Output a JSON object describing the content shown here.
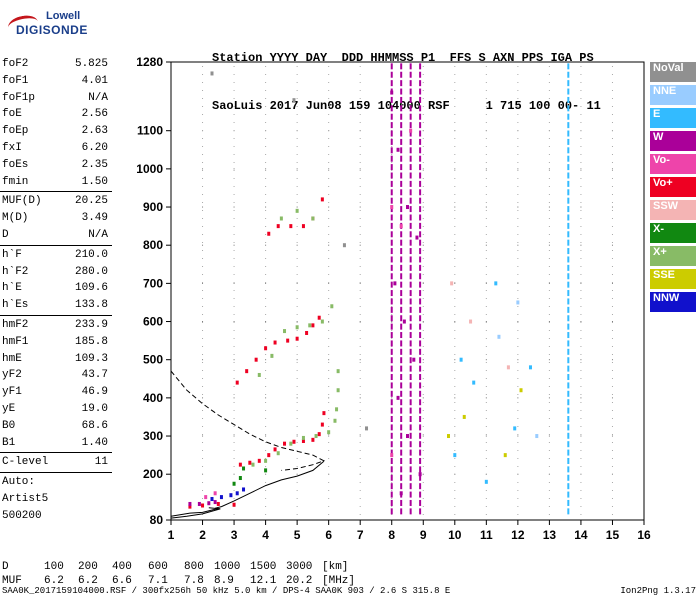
{
  "logo": {
    "line1": "Lowell",
    "line2": "DIGISONDE"
  },
  "header": {
    "line1": "Station YYYY DAY  DDD HHMMSS P1  FFS S AXN PPS IGA PS",
    "line2": "SaoLuis 2017 Jun08 159 104000 RSF     1 715 100 00- 11"
  },
  "params_group1": [
    {
      "label": "foF2",
      "value": "5.825"
    },
    {
      "label": "foF1",
      "value": "4.01"
    },
    {
      "label": "foF1p",
      "value": "N/A"
    },
    {
      "label": "foE",
      "value": "2.56"
    },
    {
      "label": "foEp",
      "value": "2.63"
    },
    {
      "label": "fxI",
      "value": "6.20"
    },
    {
      "label": "foEs",
      "value": "2.35"
    },
    {
      "label": "fmin",
      "value": "1.50"
    }
  ],
  "params_group2": [
    {
      "label": "MUF(D)",
      "value": "20.25"
    },
    {
      "label": "M(D)",
      "value": "3.49"
    },
    {
      "label": "D",
      "value": "N/A"
    }
  ],
  "params_group3": [
    {
      "label": "h`F",
      "value": "210.0"
    },
    {
      "label": "h`F2",
      "value": "280.0"
    },
    {
      "label": "h`E",
      "value": "109.6"
    },
    {
      "label": "h`Es",
      "value": "133.8"
    }
  ],
  "params_group4": [
    {
      "label": "hmF2",
      "value": "233.9"
    },
    {
      "label": "hmF1",
      "value": "185.8"
    },
    {
      "label": "hmE",
      "value": "109.3"
    },
    {
      "label": "yF2",
      "value": "43.7"
    },
    {
      "label": "yF1",
      "value": "46.9"
    },
    {
      "label": "yE",
      "value": "19.0"
    },
    {
      "label": "B0",
      "value": "68.6"
    },
    {
      "label": "B1",
      "value": "1.40"
    }
  ],
  "params_group5": [
    {
      "label": "C-level",
      "value": "11"
    }
  ],
  "autoscale": {
    "line1": "Auto:",
    "line2": "Artist5",
    "line3": "500200"
  },
  "legend": [
    {
      "label": "NoVal",
      "color": "#909090"
    },
    {
      "label": "NNE",
      "color": "#99ccff"
    },
    {
      "label": "E",
      "color": "#33bbff"
    },
    {
      "label": "W",
      "color": "#aa0099"
    },
    {
      "label": "Vo-",
      "color": "#ee44aa"
    },
    {
      "label": "Vo+",
      "color": "#ee0022"
    },
    {
      "label": "SSW",
      "color": "#f4b4b4"
    },
    {
      "label": "X-",
      "color": "#118811"
    },
    {
      "label": "X+",
      "color": "#88bb66"
    },
    {
      "label": "SSE",
      "color": "#cccc00"
    },
    {
      "label": "NNW",
      "color": "#1111cc"
    }
  ],
  "muf_table": {
    "d_label": "D",
    "d_values": [
      "100",
      "200",
      "400",
      "600",
      "800",
      "1000",
      "1500",
      "3000"
    ],
    "d_unit": "[km]",
    "muf_label": "MUF",
    "muf_values": [
      "6.2",
      "6.2",
      "6.6",
      "7.1",
      "7.8",
      "8.9",
      "12.1",
      "20.2"
    ],
    "muf_unit": "[MHz]"
  },
  "footer": "SAA0K_2017159104000.RSF / 300fx256h 50 kHz 5.0 km / DPS-4 SAA0K 903 / 2.6 S 315.8 E",
  "version": "Ion2Png 1.3.17",
  "chart_data": {
    "type": "scatter",
    "x_ticks": [
      1,
      2,
      3,
      4,
      5,
      6,
      7,
      8,
      9,
      10,
      11,
      12,
      13,
      14,
      15,
      16
    ],
    "y_ticks": [
      80,
      200,
      300,
      400,
      500,
      600,
      700,
      800,
      900,
      1000,
      1100,
      1280
    ],
    "xlim": [
      1,
      16
    ],
    "ylim": [
      80,
      1280
    ],
    "grid": true,
    "legend_placement": "right",
    "series": [
      {
        "name": "Vo+",
        "color": "#ee0022",
        "points": [
          [
            3.2,
            225
          ],
          [
            3.5,
            230
          ],
          [
            3.8,
            235
          ],
          [
            4.1,
            250
          ],
          [
            4.3,
            265
          ],
          [
            4.6,
            280
          ],
          [
            4.9,
            285
          ],
          [
            5.2,
            287
          ],
          [
            5.5,
            290
          ],
          [
            5.7,
            305
          ],
          [
            5.8,
            330
          ],
          [
            5.85,
            360
          ],
          [
            3.0,
            120
          ],
          [
            2.5,
            122
          ],
          [
            2.0,
            118
          ],
          [
            1.6,
            115
          ],
          [
            3.1,
            440
          ],
          [
            3.4,
            470
          ],
          [
            3.7,
            500
          ],
          [
            4.0,
            530
          ],
          [
            4.3,
            545
          ],
          [
            4.7,
            550
          ],
          [
            5.0,
            555
          ],
          [
            5.3,
            570
          ],
          [
            5.5,
            590
          ],
          [
            5.7,
            610
          ],
          [
            4.1,
            830
          ],
          [
            4.4,
            850
          ],
          [
            4.8,
            850
          ],
          [
            5.2,
            850
          ],
          [
            5.5,
            870
          ],
          [
            5.8,
            920
          ]
        ]
      },
      {
        "name": "X+",
        "color": "#88bb66",
        "points": [
          [
            3.6,
            225
          ],
          [
            4.0,
            235
          ],
          [
            4.4,
            255
          ],
          [
            4.8,
            280
          ],
          [
            5.2,
            295
          ],
          [
            5.6,
            300
          ],
          [
            6.0,
            310
          ],
          [
            6.2,
            340
          ],
          [
            6.25,
            370
          ],
          [
            6.3,
            420
          ],
          [
            6.3,
            470
          ],
          [
            3.8,
            460
          ],
          [
            4.2,
            510
          ],
          [
            4.6,
            575
          ],
          [
            5.0,
            585
          ],
          [
            5.4,
            590
          ],
          [
            5.8,
            600
          ],
          [
            6.1,
            640
          ],
          [
            4.5,
            870
          ],
          [
            5.0,
            890
          ],
          [
            5.5,
            870
          ]
        ]
      },
      {
        "name": "NNW",
        "color": "#1111cc",
        "points": [
          [
            2.6,
            140
          ],
          [
            2.9,
            145
          ],
          [
            3.1,
            150
          ],
          [
            3.3,
            160
          ],
          [
            2.3,
            135
          ]
        ]
      },
      {
        "name": "X-",
        "color": "#118811",
        "points": [
          [
            3.0,
            175
          ],
          [
            3.2,
            190
          ],
          [
            3.3,
            215
          ],
          [
            4.0,
            210
          ]
        ]
      },
      {
        "name": "W",
        "color": "#aa0099",
        "points": [
          [
            1.6,
            122
          ],
          [
            1.9,
            122
          ],
          [
            2.2,
            124
          ],
          [
            2.4,
            127
          ],
          [
            8.0,
            1200
          ],
          [
            8.2,
            1050
          ],
          [
            8.5,
            900
          ],
          [
            8.8,
            820
          ],
          [
            8.1,
            700
          ],
          [
            8.4,
            600
          ],
          [
            8.7,
            500
          ],
          [
            8.2,
            400
          ],
          [
            8.5,
            300
          ],
          [
            8.9,
            200
          ],
          [
            8.3,
            150
          ]
        ]
      },
      {
        "name": "E",
        "color": "#33bbff",
        "points": [
          [
            10.2,
            500
          ],
          [
            10.6,
            440
          ],
          [
            11.3,
            700
          ],
          [
            11.9,
            320
          ],
          [
            12.4,
            480
          ],
          [
            10.0,
            250
          ],
          [
            11.0,
            180
          ]
        ]
      },
      {
        "name": "SSE",
        "color": "#cccc00",
        "points": [
          [
            9.8,
            300
          ],
          [
            10.3,
            350
          ],
          [
            11.6,
            250
          ],
          [
            12.1,
            420
          ]
        ]
      },
      {
        "name": "Vo-",
        "color": "#ee44aa",
        "points": [
          [
            2.1,
            140
          ],
          [
            2.4,
            150
          ],
          [
            8.0,
            900
          ],
          [
            8.6,
            1100
          ],
          [
            8.3,
            850
          ],
          [
            8.0,
            250
          ]
        ]
      },
      {
        "name": "NNE",
        "color": "#99ccff",
        "points": [
          [
            12.0,
            650
          ],
          [
            12.6,
            300
          ],
          [
            11.4,
            560
          ]
        ]
      },
      {
        "name": "SSW",
        "color": "#f4b4b4",
        "points": [
          [
            10.5,
            600
          ],
          [
            11.7,
            480
          ],
          [
            9.9,
            700
          ]
        ]
      },
      {
        "name": "NoVal",
        "color": "#909090",
        "points": [
          [
            2.3,
            1250
          ],
          [
            4.9,
            1180
          ],
          [
            7.2,
            320
          ],
          [
            6.5,
            800
          ]
        ]
      }
    ],
    "vertical_streaks": [
      {
        "x": 8.0,
        "color": "#aa0099"
      },
      {
        "x": 8.3,
        "color": "#aa0099"
      },
      {
        "x": 8.6,
        "color": "#aa0099"
      },
      {
        "x": 8.9,
        "color": "#aa0099"
      },
      {
        "x": 13.6,
        "color": "#33bbff"
      }
    ],
    "profile_curves": [
      {
        "style": "dashed",
        "points": [
          [
            1.0,
            470
          ],
          [
            1.5,
            420
          ],
          [
            2.0,
            385
          ],
          [
            2.5,
            355
          ],
          [
            3.0,
            330
          ],
          [
            3.5,
            305
          ],
          [
            4.0,
            285
          ],
          [
            4.5,
            270
          ],
          [
            5.0,
            260
          ],
          [
            5.5,
            250
          ],
          [
            5.85,
            235
          ],
          [
            5.5,
            225
          ],
          [
            5.0,
            215
          ],
          [
            4.5,
            210
          ]
        ]
      },
      {
        "style": "solid",
        "points": [
          [
            1.0,
            90
          ],
          [
            1.6,
            98
          ],
          [
            2.0,
            100
          ],
          [
            2.4,
            108
          ],
          [
            2.56,
            109
          ],
          [
            2.4,
            111
          ],
          [
            2.6,
            115
          ],
          [
            3.0,
            130
          ],
          [
            3.5,
            150
          ],
          [
            4.0,
            170
          ],
          [
            4.5,
            185
          ],
          [
            5.0,
            195
          ],
          [
            5.5,
            210
          ],
          [
            5.85,
            234
          ]
        ]
      },
      {
        "style": "solid",
        "points": [
          [
            1.0,
            85
          ],
          [
            1.5,
            90
          ],
          [
            2.0,
            96
          ],
          [
            2.56,
            109
          ],
          [
            2.2,
            112
          ]
        ]
      }
    ]
  }
}
